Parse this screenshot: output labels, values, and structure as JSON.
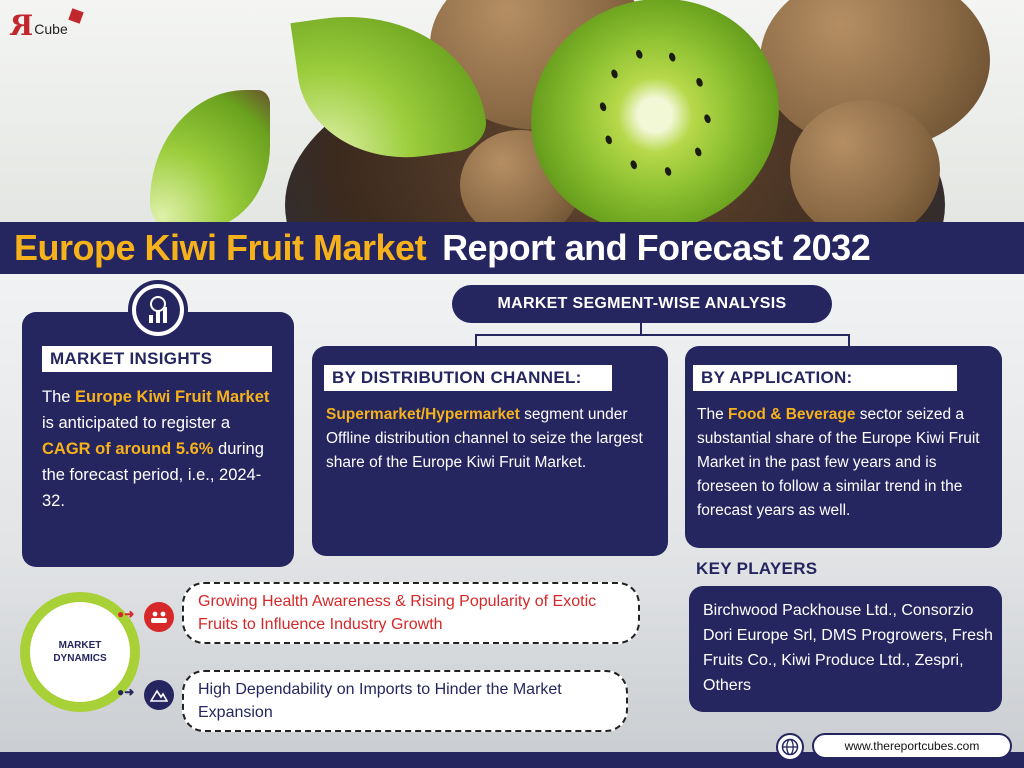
{
  "logo": {
    "mark": "R",
    "text": "Cube"
  },
  "title": {
    "part1": "Europe Kiwi Fruit Market",
    "part2": "Report and Forecast 2032"
  },
  "segment_header": "MARKET SEGMENT-WISE ANALYSIS",
  "insights": {
    "label": "MARKET INSIGHTS",
    "text_pre": "The ",
    "hl1": "Europe Kiwi Fruit Market",
    "text_mid": " is anticipated to register a ",
    "hl2": "CAGR of around 5.6%",
    "text_post": " during the forecast period, i.e., 2024-32."
  },
  "distribution": {
    "label": "BY DISTRIBUTION CHANNEL:",
    "hl": "Supermarket/Hypermarket",
    "text": " segment under Offline distribution channel to seize the largest share of the Europe Kiwi Fruit Market."
  },
  "application": {
    "label": "BY APPLICATION:",
    "text_pre": "The ",
    "hl": "Food & Beverage",
    "text_post": " sector seized a substantial share of the Europe Kiwi Fruit Market in the past few years and is foreseen to follow a similar trend in the forecast years as well."
  },
  "key_players": {
    "label": "KEY PLAYERS",
    "text": "Birchwood Packhouse Ltd., Consorzio Dori Europe Srl, DMS Progrowers, Fresh Fruits Co., Kiwi Produce Ltd., Zespri, Others"
  },
  "dynamics": {
    "label_line1": "MARKET",
    "label_line2": "DYNAMICS",
    "driver": "Growing Health Awareness & Rising Popularity of Exotic Fruits to Influence Industry Growth",
    "challenge": "High Dependability on Imports to Hinder the Market Expansion"
  },
  "footer": {
    "url": "www.thereportcubes.com"
  },
  "colors": {
    "navy": "#252560",
    "accent": "#f6b21b",
    "driver_red": "#d62828",
    "lime": "#a8d037"
  },
  "icons": [
    "analytics-icon",
    "people-icon",
    "mountain-icon",
    "globe-icon"
  ]
}
